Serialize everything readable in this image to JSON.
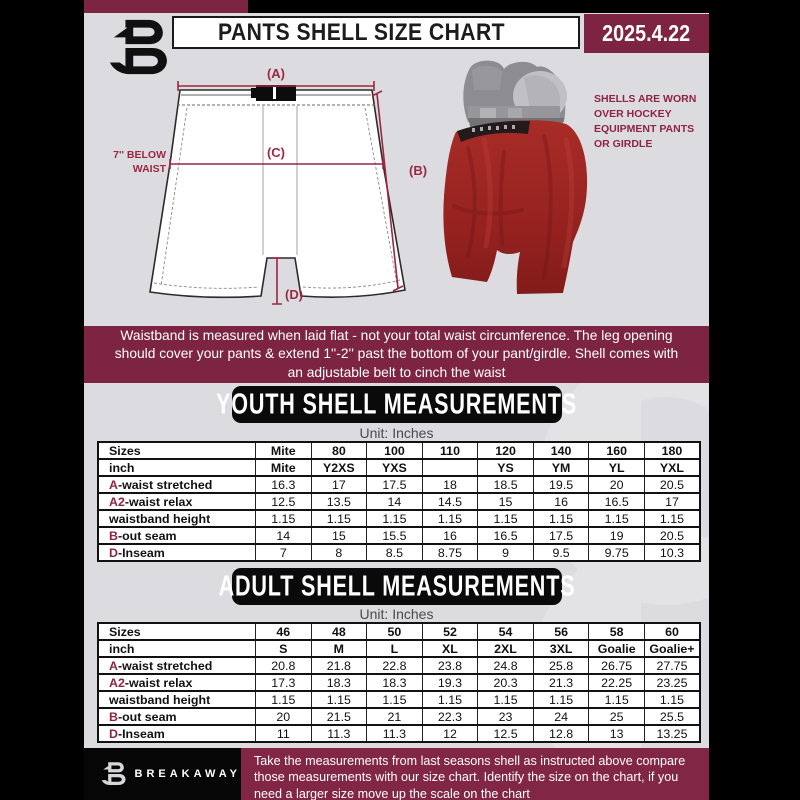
{
  "header": {
    "title": "PANTS SHELL SIZE CHART",
    "date": "2025.4.22"
  },
  "diagram": {
    "label_a": "(A)",
    "label_b": "(B)",
    "label_c": "(C)",
    "label_d": "(D)",
    "note_line1": "7'' BELOW",
    "note_line2": "WAIST"
  },
  "photo_caption": "SHELLS ARE WORN\nOVER HOCKEY\nEQUIPMENT PANTS\nOR GIRDLE",
  "banner": {
    "text": "Waistband is measured when laid flat - not your total waist circumference. The leg opening should cover your pants & extend 1''-2'' past the bottom of your pant/girdle. Shell comes with an adjustable belt to cinch the waist"
  },
  "youth": {
    "heading": "YOUTH SHELL MEASUREMENTS",
    "unit": "Unit: Inches",
    "table": {
      "rows": [
        {
          "prefix": "",
          "label": "Sizes",
          "bold": true,
          "values": [
            "Mite",
            "80",
            "100",
            "110",
            "120",
            "140",
            "160",
            "180"
          ]
        },
        {
          "prefix": "",
          "label": "inch",
          "bold": true,
          "values": [
            "Mite",
            "Y2XS",
            "YXS",
            "",
            "YS",
            "YM",
            "YL",
            "YXL"
          ]
        },
        {
          "prefix": "A",
          "label": "-waist stretched",
          "bold": false,
          "values": [
            "16.3",
            "17",
            "17.5",
            "18",
            "18.5",
            "19.5",
            "20",
            "20.5"
          ]
        },
        {
          "prefix": "A2",
          "label": "-waist relax",
          "bold": false,
          "values": [
            "12.5",
            "13.5",
            "14",
            "14.5",
            "15",
            "16",
            "16.5",
            "17"
          ]
        },
        {
          "prefix": "",
          "label": "waistband height",
          "bold": false,
          "values": [
            "1.15",
            "1.15",
            "1.15",
            "1.15",
            "1.15",
            "1.15",
            "1.15",
            "1.15"
          ]
        },
        {
          "prefix": "B",
          "label": "-out seam",
          "bold": false,
          "values": [
            "14",
            "15",
            "15.5",
            "16",
            "16.5",
            "17.5",
            "19",
            "20.5"
          ]
        },
        {
          "prefix": "D",
          "label": "-Inseam",
          "bold": false,
          "values": [
            "7",
            "8",
            "8.5",
            "8.75",
            "9",
            "9.5",
            "9.75",
            "10.3"
          ]
        }
      ]
    }
  },
  "adult": {
    "heading": "ADULT SHELL MEASUREMENTS",
    "unit": "Unit: Inches",
    "table": {
      "rows": [
        {
          "prefix": "",
          "label": "Sizes",
          "bold": true,
          "values": [
            "46",
            "48",
            "50",
            "52",
            "54",
            "56",
            "58",
            "60"
          ]
        },
        {
          "prefix": "",
          "label": "inch",
          "bold": true,
          "values": [
            "S",
            "M",
            "L",
            "XL",
            "2XL",
            "3XL",
            "Goalie",
            "Goalie+"
          ]
        },
        {
          "prefix": "A",
          "label": "-waist stretched",
          "bold": false,
          "values": [
            "20.8",
            "21.8",
            "22.8",
            "23.8",
            "24.8",
            "25.8",
            "26.75",
            "27.75"
          ]
        },
        {
          "prefix": "A2",
          "label": "-waist relax",
          "bold": false,
          "values": [
            "17.3",
            "18.3",
            "18.3",
            "19.3",
            "20.3",
            "21.3",
            "22.25",
            "23.25"
          ]
        },
        {
          "prefix": "",
          "label": "waistband height",
          "bold": false,
          "values": [
            "1.15",
            "1.15",
            "1.15",
            "1.15",
            "1.15",
            "1.15",
            "1.15",
            "1.15"
          ]
        },
        {
          "prefix": "B",
          "label": "-out seam",
          "bold": false,
          "values": [
            "20",
            "21.5",
            "21",
            "22.3",
            "23",
            "24",
            "25",
            "25.5"
          ]
        },
        {
          "prefix": "D",
          "label": "-Inseam",
          "bold": false,
          "values": [
            "11",
            "11.3",
            "11.3",
            "12",
            "12.5",
            "12.8",
            "13",
            "13.25"
          ]
        }
      ]
    }
  },
  "footer": {
    "brand": "BREAKAWAY",
    "note": "Take the measurements from last seasons shell as instructed above compare those measurements  with our size chart. Identify the size on the chart, if you need a larger size move up the scale on the chart"
  },
  "colors": {
    "maroon": "#7d2442",
    "accent_text": "#8e2342",
    "page_gray": "#dcdce0",
    "black": "#000000",
    "shell_red": "#9e2524"
  }
}
